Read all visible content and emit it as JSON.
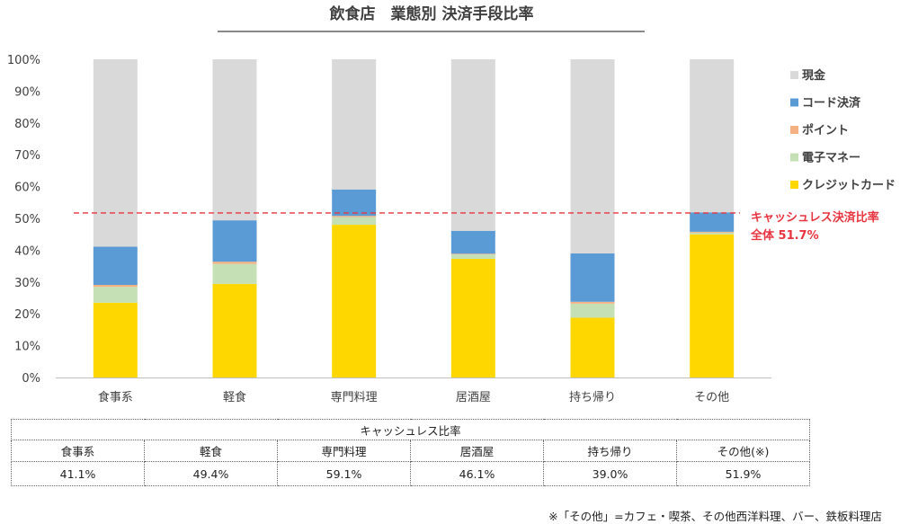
{
  "chart_data": {
    "type": "bar",
    "stacked": true,
    "title": "飲食店　業態別 決済手段比率",
    "categories": [
      "食事系",
      "軽食",
      "専門料理",
      "居酒屋",
      "持ち帰り",
      "その他"
    ],
    "y_ticks": [
      "0%",
      "10%",
      "20%",
      "30%",
      "40%",
      "50%",
      "60%",
      "70%",
      "80%",
      "90%",
      "100%"
    ],
    "ylim": [
      0,
      100
    ],
    "series": [
      {
        "name": "クレジットカード",
        "color": "#ffd700",
        "values": [
          23.5,
          29.4,
          48.0,
          37.3,
          18.8,
          45.0
        ]
      },
      {
        "name": "電子マネー",
        "color": "#c5e0b4",
        "values": [
          5.0,
          6.3,
          2.4,
          1.4,
          4.4,
          0.5
        ]
      },
      {
        "name": "ポイント",
        "color": "#f4b183",
        "values": [
          0.6,
          0.7,
          0.4,
          0.2,
          0.6,
          0.3
        ]
      },
      {
        "name": "コード決済",
        "color": "#5b9bd5",
        "values": [
          12.0,
          13.0,
          8.3,
          7.2,
          15.2,
          6.1
        ]
      },
      {
        "name": "現金",
        "color": "#d9d9d9",
        "values": [
          58.9,
          50.6,
          40.9,
          53.9,
          61.0,
          48.1
        ]
      }
    ],
    "legend_order": [
      "現金",
      "コード決済",
      "ポイント",
      "電子マネー",
      "クレジットカード"
    ],
    "reference_line": {
      "value": 51.7,
      "color": "#e8343f",
      "label_line1": "キャッシュレス決済比率",
      "label_line2": "全体 51.7%"
    }
  },
  "table": {
    "caption": "キャッシュレス比率",
    "headers": [
      "食事系",
      "軽食",
      "専門料理",
      "居酒屋",
      "持ち帰り",
      "その他(※)"
    ],
    "values": [
      "41.1%",
      "49.4%",
      "59.1%",
      "46.1%",
      "39.0%",
      "51.9%"
    ]
  },
  "footnote": "※「その他」=カフェ・喫茶、その他西洋料理、バー、鉄板料理店"
}
